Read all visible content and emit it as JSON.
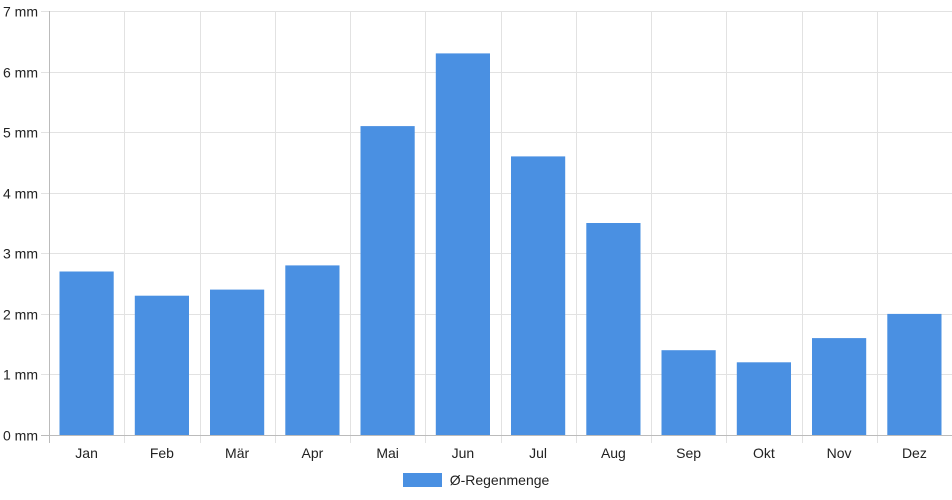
{
  "chart_data": {
    "type": "bar",
    "categories": [
      "Jan",
      "Feb",
      "Mär",
      "Apr",
      "Mai",
      "Jun",
      "Jul",
      "Aug",
      "Sep",
      "Okt",
      "Nov",
      "Dez"
    ],
    "series": [
      {
        "name": "Ø-Regenmenge",
        "values": [
          2.7,
          2.3,
          2.4,
          2.8,
          5.1,
          6.3,
          4.6,
          3.5,
          1.4,
          1.2,
          1.6,
          2.0
        ],
        "color": "#4a90e2"
      }
    ],
    "ylim": [
      0,
      7
    ],
    "yticks": [
      0,
      1,
      2,
      3,
      4,
      5,
      6,
      7
    ],
    "y_unit": "mm",
    "grid": true,
    "legend_position": "bottom"
  }
}
